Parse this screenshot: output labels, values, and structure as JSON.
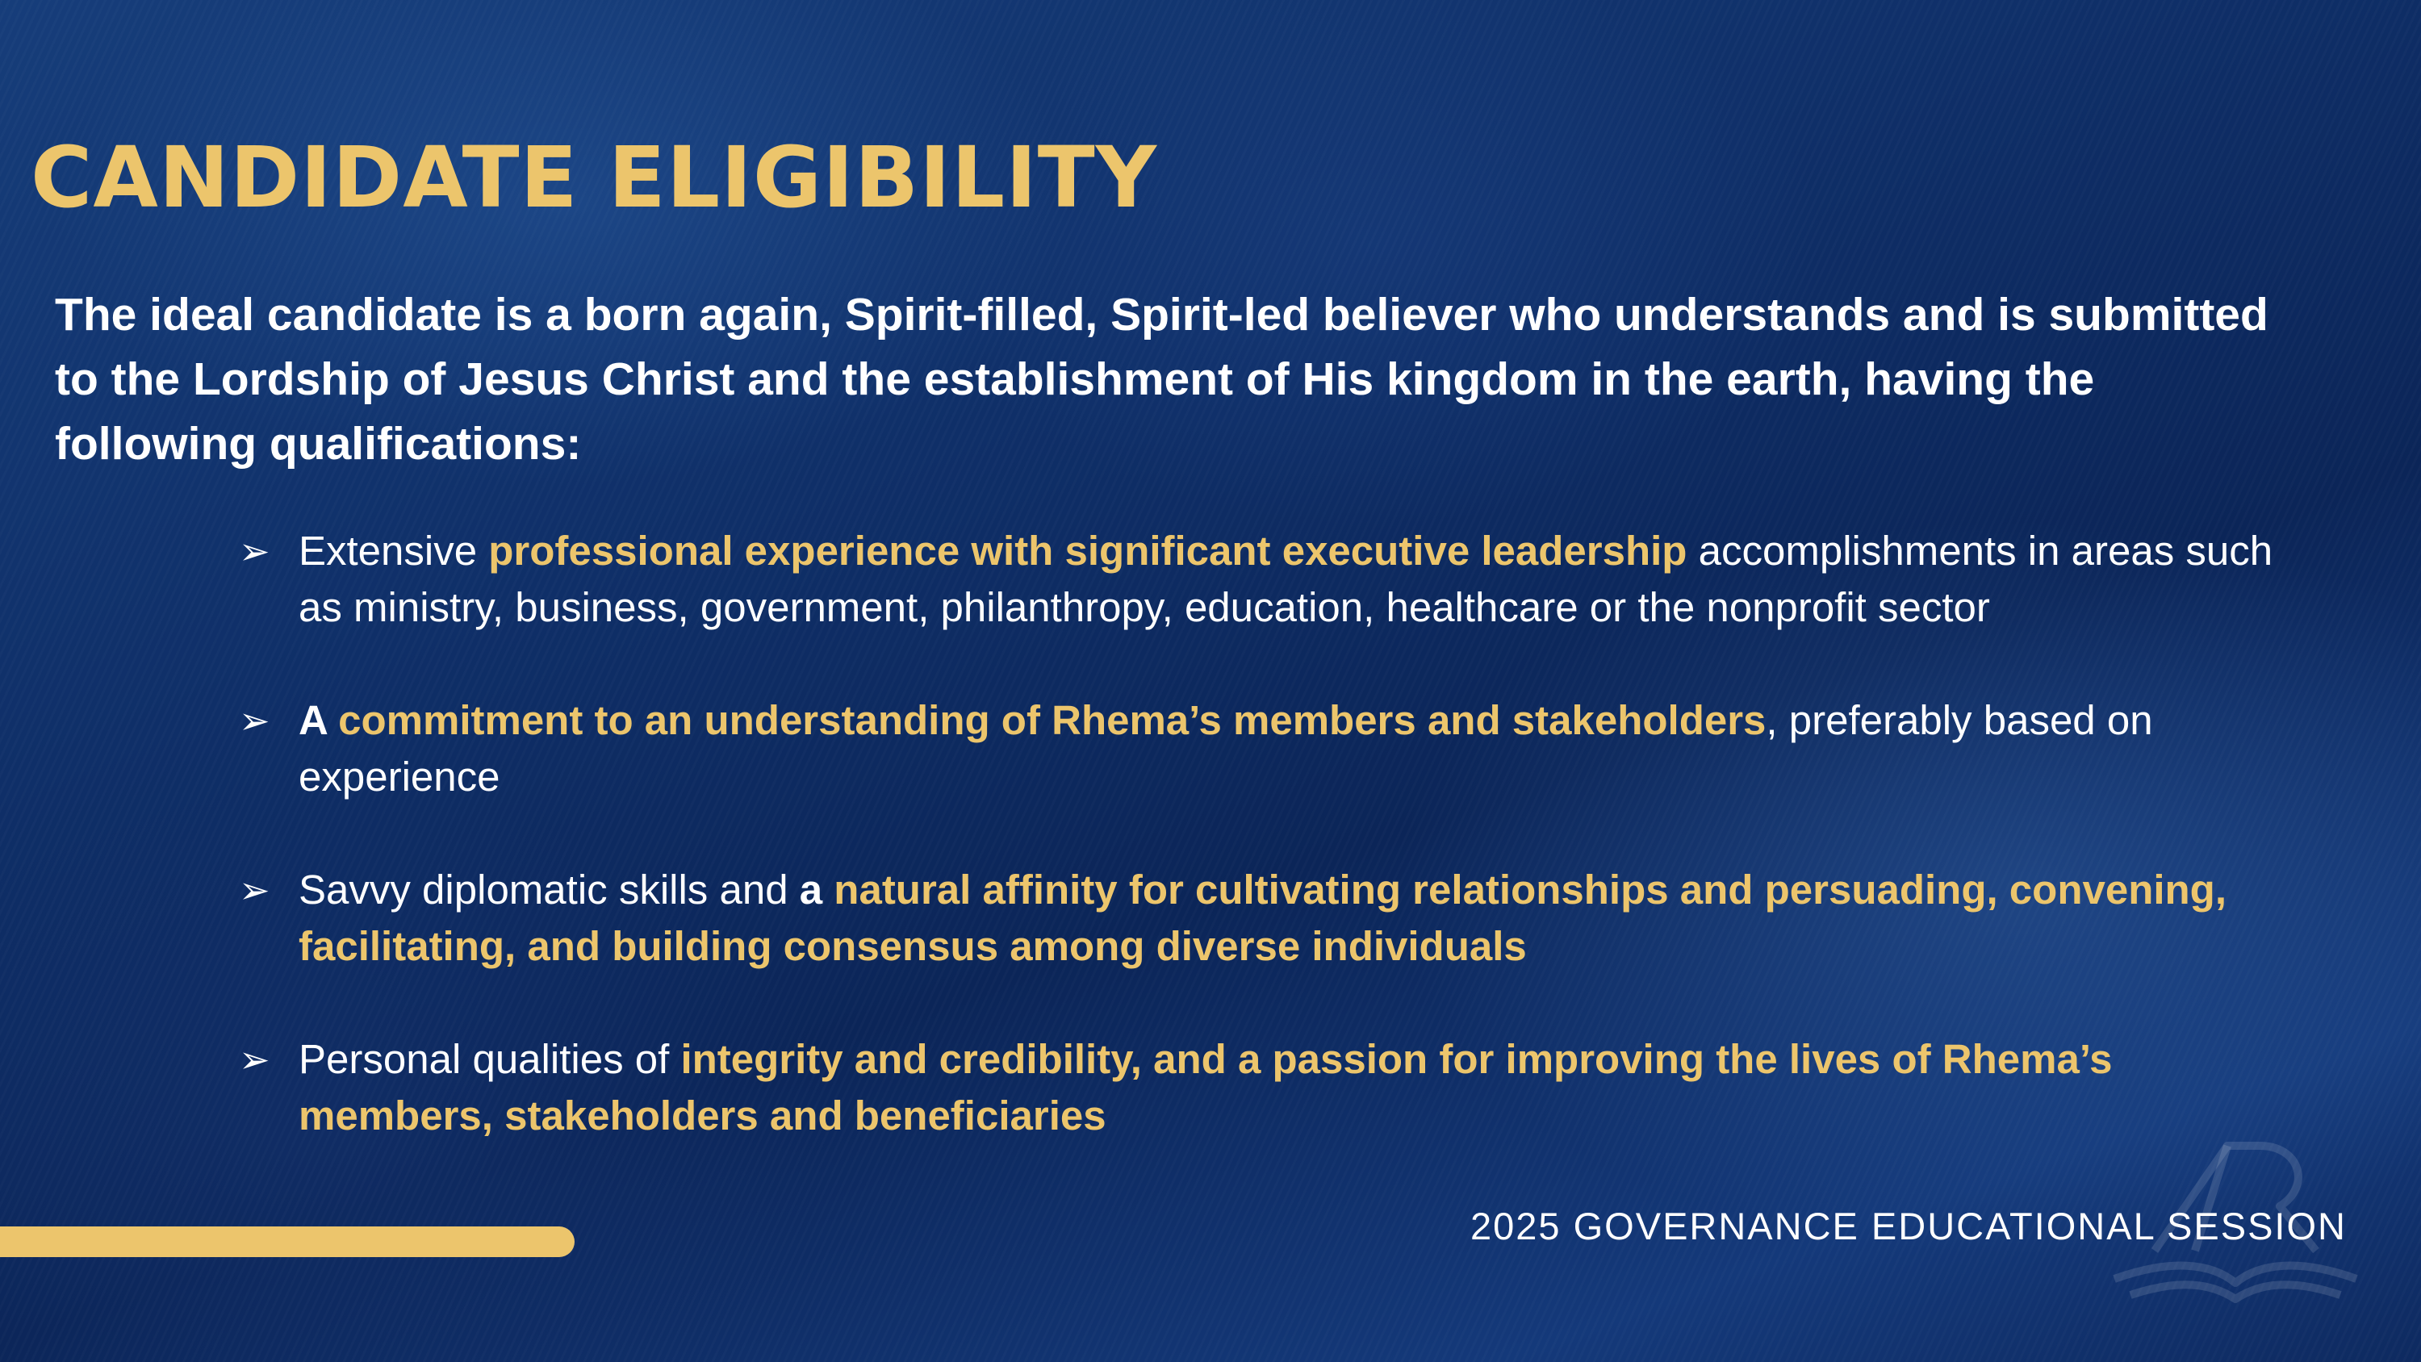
{
  "slide": {
    "title": "CANDIDATE ELIGIBILITY",
    "intro": "The ideal candidate is a born again, Spirit-filled, Spirit-led believer who understands and is submitted to the Lordship of Jesus Christ and the establishment of His kingdom in the earth, having the following qualifications:",
    "bullet_icon": "arrow-bullet-icon",
    "bullets": [
      {
        "lead": "Extensive ",
        "highlight": "professional experience with significant executive leadership",
        "tail": " accomplishments in areas such as ministry, business, government, philanthropy, education, healthcare or the nonprofit sector"
      },
      {
        "lead": "A ",
        "highlight": "commitment to an understanding of Rhema’s members and stakeholders",
        "tail": ", preferably based on experience"
      },
      {
        "lead": "Savvy diplomatic skills and ",
        "lead_bold": "a ",
        "highlight": "natural affinity for cultivating relationships and persuading, convening, facilitating, and building consensus among diverse individuals",
        "tail": ""
      },
      {
        "lead": "Personal qualities of ",
        "highlight": "integrity and credibility, and a passion for improving the lives of Rhema’s members, stakeholders and beneficiaries",
        "tail": ""
      }
    ],
    "footer": "2025 GOVERNANCE EDUCATIONAL SESSION",
    "logo_icon": "rhema-logo-icon"
  },
  "colors": {
    "accent_gold": "#ecc56c",
    "background_navy": "#0f2f68",
    "text_white": "#ffffff"
  }
}
